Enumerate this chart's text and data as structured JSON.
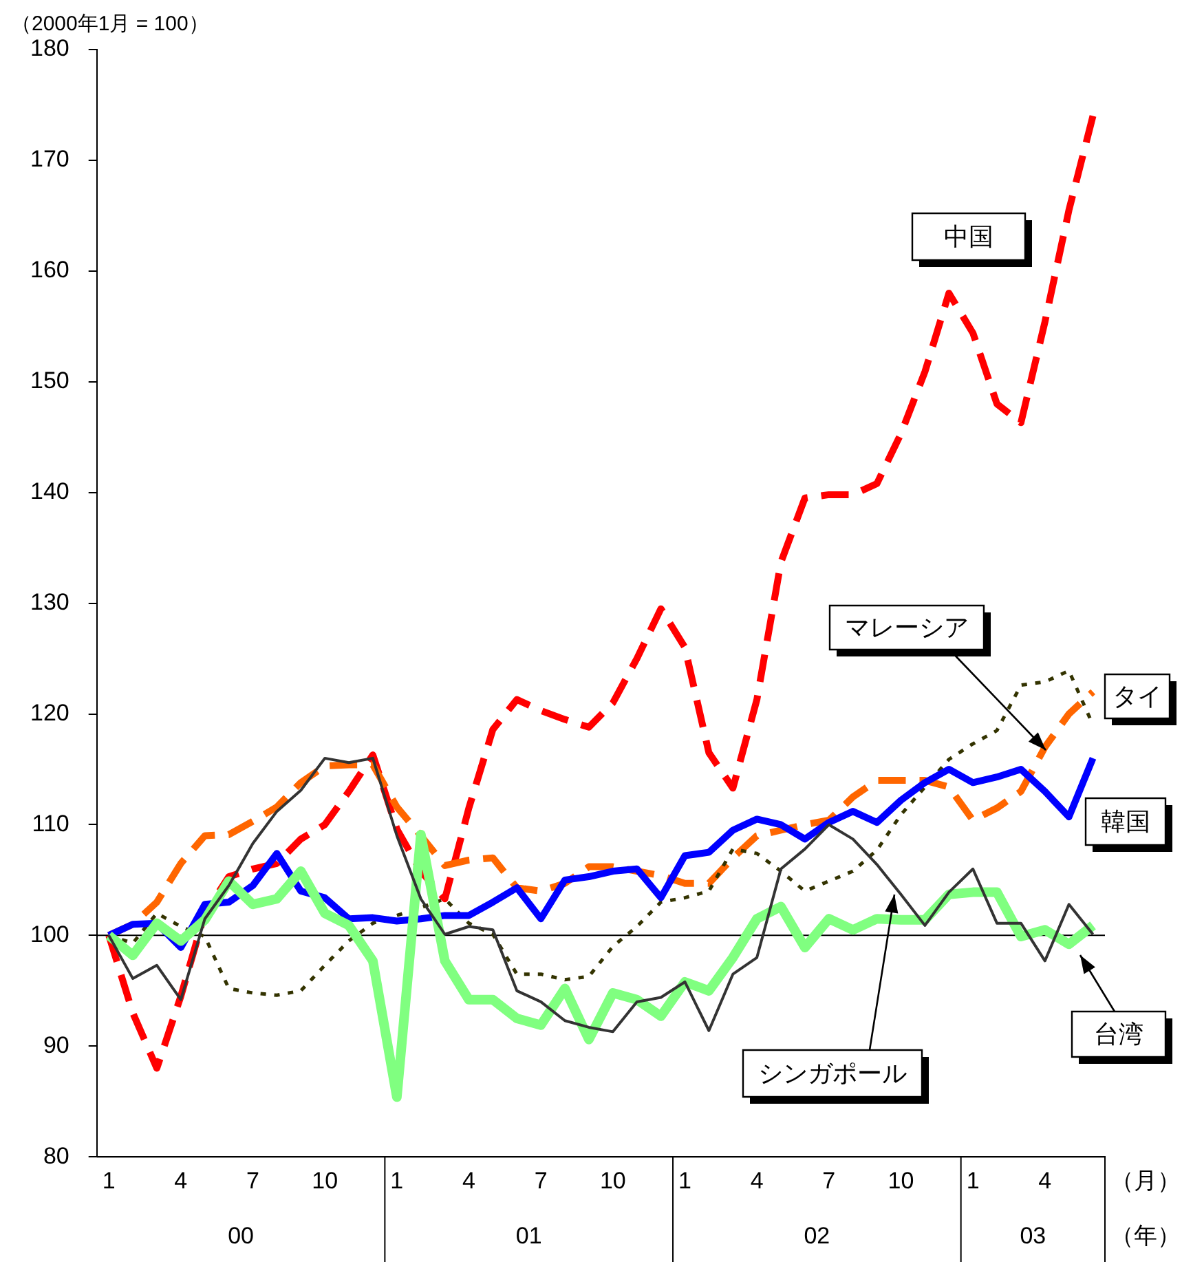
{
  "chart_data": {
    "type": "line",
    "ylabel": "（2000年1月 = 100）",
    "categories": [
      "1",
      null,
      null,
      "4",
      null,
      null,
      "7",
      null,
      null,
      "10",
      null,
      null,
      "1",
      null,
      null,
      "4",
      null,
      null,
      "7",
      null,
      null,
      "10",
      null,
      null,
      "1",
      null,
      null,
      "4",
      null,
      null,
      "7",
      null,
      null,
      "10",
      null,
      null,
      "1",
      null,
      null,
      "4",
      null,
      null
    ],
    "series": [
      {
        "name": "中国",
        "color": "#ff0000",
        "line_style": "dashed",
        "values": [
          100,
          93,
          88,
          94.5,
          102,
          105.3,
          106,
          106.5,
          108.7,
          110,
          113,
          116.3,
          109.6,
          105.8,
          103.3,
          111.5,
          118.6,
          121.3,
          120.3,
          119.5,
          118.8,
          121,
          125,
          129.5,
          126,
          116.5,
          113.3,
          121.3,
          133.7,
          139.5,
          139.8,
          139.8,
          140.8,
          145.3,
          150.9,
          158,
          154.4,
          148,
          146.3,
          155.4,
          165.5,
          174
        ]
      },
      {
        "name": "マレーシア",
        "color": "#ff6600",
        "line_style": "dashed",
        "values": [
          100,
          101,
          103,
          106.5,
          109,
          109.1,
          110.3,
          111.6,
          113.8,
          115.3,
          115.4,
          115.4,
          111.6,
          109,
          106.3,
          106.8,
          107,
          104.3,
          104,
          104.7,
          106.2,
          106.2,
          105.8,
          105.4,
          104.7,
          104.7,
          107,
          109,
          109.5,
          110,
          110.4,
          112.5,
          114,
          114,
          114,
          113.4,
          110.4,
          111.5,
          113,
          117,
          120,
          122
        ]
      },
      {
        "name": "タイ",
        "color": "#333300",
        "line_style": "dotted",
        "values": [
          100,
          99.3,
          102,
          100.8,
          99.9,
          95.2,
          94.8,
          94.6,
          95,
          97.3,
          99.5,
          101.1,
          101.8,
          102.5,
          103.3,
          101.1,
          100.1,
          96.5,
          96.5,
          96,
          96.3,
          99,
          100.8,
          103,
          103.4,
          104,
          107.8,
          107.4,
          105.8,
          104,
          104.9,
          105.8,
          107.7,
          110.9,
          113.4,
          115.9,
          117.3,
          118.5,
          122.6,
          122.9,
          123.9,
          119
        ]
      },
      {
        "name": "韓国",
        "color": "#0000ff",
        "line_style": "solid",
        "values": [
          100,
          101,
          101.1,
          98.9,
          102.8,
          103,
          104.5,
          107.4,
          104,
          103.4,
          101.5,
          101.6,
          101.3,
          101.5,
          101.8,
          101.8,
          103,
          104.3,
          101.5,
          105,
          105.3,
          105.8,
          106,
          103.4,
          107.2,
          107.5,
          109.5,
          110.5,
          110,
          108.7,
          110.2,
          111.2,
          110.2,
          112.2,
          113.8,
          115,
          113.8,
          114.3,
          115,
          113,
          110.7,
          116
        ]
      },
      {
        "name": "台湾",
        "color": "#80ff80",
        "line_style": "solid",
        "values": [
          100,
          98.2,
          101.1,
          99.5,
          101.4,
          104.9,
          102.8,
          103.3,
          105.8,
          102,
          100.9,
          97.7,
          85.4,
          109.1,
          97.7,
          94.2,
          94.2,
          92.5,
          91.9,
          95.2,
          90.6,
          94.8,
          94.2,
          92.7,
          95.8,
          95,
          98,
          101.5,
          102.6,
          98.9,
          101.5,
          100.5,
          101.5,
          101.4,
          101.4,
          103.7,
          103.9,
          103.9,
          99.9,
          100.5,
          99.2,
          100.9
        ]
      },
      {
        "name": "シンガポール",
        "color": "#333333",
        "line_style": "solid",
        "values": [
          100,
          96.1,
          97.3,
          94.2,
          101.5,
          104.5,
          108.3,
          111.2,
          113.1,
          116,
          115.6,
          116,
          109,
          103.3,
          100.1,
          100.8,
          100.5,
          95,
          94,
          92.3,
          91.7,
          91.3,
          94,
          94.4,
          95.8,
          91.4,
          96.5,
          98,
          106,
          107.8,
          110,
          108.7,
          106.4,
          103.7,
          100.9,
          103.9,
          106,
          101.1,
          101.1,
          97.7,
          102.8,
          100.1
        ]
      }
    ],
    "ylim": [
      80,
      180
    ],
    "yticks": [
      80,
      90,
      100,
      110,
      120,
      130,
      140,
      150,
      160,
      170,
      180
    ],
    "ref_lines": [
      {
        "axis": "y",
        "value": 100,
        "color": "#000000"
      }
    ],
    "annotations": [
      "00",
      "01",
      "02",
      "03",
      "（月）",
      "（年）"
    ],
    "grid": false,
    "legend": false,
    "marker": "none"
  }
}
